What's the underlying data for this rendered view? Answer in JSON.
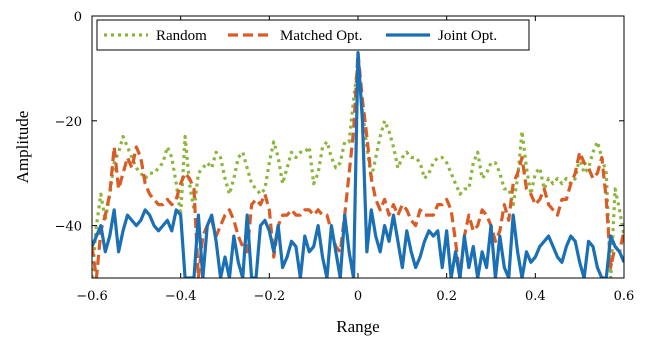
{
  "chart_data": {
    "type": "line",
    "title": "",
    "xlabel": "Range",
    "ylabel": "Amplitude",
    "xlim": [
      -0.6,
      0.6
    ],
    "ylim": [
      -50,
      0
    ],
    "x_ticks": [
      -0.6,
      -0.4,
      -0.2,
      0,
      0.2,
      0.4,
      0.6
    ],
    "x_tick_labels": [
      "−0.6",
      "−0.4",
      "−0.2",
      "0",
      "0.2",
      "0.4",
      "0.6"
    ],
    "y_ticks": [
      -40,
      -20,
      0
    ],
    "y_tick_labels": [
      "−40",
      "−20",
      "0"
    ],
    "grid": false,
    "legend": "top",
    "series": [
      {
        "name": "Random",
        "color": "#8db53c",
        "style": "dotted",
        "x": [
          -0.6,
          -0.59,
          -0.58,
          -0.57,
          -0.56,
          -0.55,
          -0.54,
          -0.53,
          -0.52,
          -0.51,
          -0.5,
          -0.49,
          -0.48,
          -0.47,
          -0.46,
          -0.45,
          -0.44,
          -0.43,
          -0.42,
          -0.41,
          -0.4,
          -0.39,
          -0.38,
          -0.37,
          -0.36,
          -0.35,
          -0.34,
          -0.33,
          -0.32,
          -0.31,
          -0.3,
          -0.29,
          -0.28,
          -0.27,
          -0.26,
          -0.25,
          -0.24,
          -0.23,
          -0.22,
          -0.21,
          -0.2,
          -0.19,
          -0.18,
          -0.17,
          -0.16,
          -0.15,
          -0.14,
          -0.13,
          -0.12,
          -0.11,
          -0.1,
          -0.09,
          -0.08,
          -0.07,
          -0.06,
          -0.05,
          -0.04,
          -0.03,
          -0.02,
          -0.01,
          0,
          0.01,
          0.02,
          0.03,
          0.04,
          0.05,
          0.06,
          0.07,
          0.08,
          0.09,
          0.1,
          0.11,
          0.12,
          0.13,
          0.14,
          0.15,
          0.16,
          0.17,
          0.18,
          0.19,
          0.2,
          0.21,
          0.22,
          0.23,
          0.24,
          0.25,
          0.26,
          0.27,
          0.28,
          0.29,
          0.3,
          0.31,
          0.32,
          0.33,
          0.34,
          0.35,
          0.36,
          0.37,
          0.38,
          0.39,
          0.4,
          0.41,
          0.42,
          0.43,
          0.44,
          0.45,
          0.46,
          0.47,
          0.48,
          0.49,
          0.5,
          0.51,
          0.52,
          0.53,
          0.54,
          0.55,
          0.56,
          0.57,
          0.58,
          0.59,
          0.6
        ],
        "y": [
          -50,
          -40,
          -34,
          -39,
          -34,
          -28,
          -26,
          -23,
          -25,
          -27,
          -29,
          -30,
          -31,
          -30,
          -30,
          -29,
          -28,
          -25,
          -27,
          -32,
          -38,
          -23,
          -32,
          -37,
          -30,
          -29,
          -28,
          -29,
          -26,
          -27,
          -31,
          -34,
          -31,
          -27,
          -26,
          -29,
          -32,
          -33,
          -34,
          -33,
          -28,
          -24,
          -27,
          -32,
          -29,
          -26,
          -27,
          -26,
          -26,
          -25,
          -32,
          -30,
          -25,
          -24,
          -27,
          -29,
          -28,
          -24,
          -24,
          -16,
          -9,
          -18,
          -25,
          -31,
          -27,
          -23,
          -20,
          -22,
          -25,
          -29,
          -27,
          -26,
          -27,
          -27,
          -28,
          -31,
          -30,
          -28,
          -27,
          -27,
          -28,
          -30,
          -32,
          -34,
          -33,
          -33,
          -28,
          -26,
          -31,
          -30,
          -28,
          -28,
          -30,
          -33,
          -33,
          -36,
          -31,
          -22,
          -29,
          -34,
          -30,
          -29,
          -33,
          -31,
          -32,
          -31,
          -32,
          -31,
          -32,
          -31,
          -27,
          -30,
          -29,
          -26,
          -24,
          -27,
          -30,
          -50,
          -33,
          -37,
          -42
        ]
      },
      {
        "name": "Matched Opt.",
        "color": "#d95b25",
        "style": "dashed",
        "x": [
          -0.6,
          -0.59,
          -0.58,
          -0.57,
          -0.56,
          -0.55,
          -0.54,
          -0.53,
          -0.52,
          -0.51,
          -0.5,
          -0.49,
          -0.48,
          -0.47,
          -0.46,
          -0.45,
          -0.44,
          -0.43,
          -0.42,
          -0.41,
          -0.4,
          -0.39,
          -0.38,
          -0.37,
          -0.36,
          -0.35,
          -0.34,
          -0.33,
          -0.32,
          -0.31,
          -0.3,
          -0.29,
          -0.28,
          -0.27,
          -0.26,
          -0.25,
          -0.24,
          -0.23,
          -0.22,
          -0.21,
          -0.2,
          -0.19,
          -0.18,
          -0.17,
          -0.16,
          -0.15,
          -0.14,
          -0.13,
          -0.12,
          -0.11,
          -0.1,
          -0.09,
          -0.08,
          -0.07,
          -0.06,
          -0.05,
          -0.04,
          -0.03,
          -0.02,
          -0.01,
          0,
          0.01,
          0.02,
          0.03,
          0.04,
          0.05,
          0.06,
          0.07,
          0.08,
          0.09,
          0.1,
          0.11,
          0.12,
          0.13,
          0.14,
          0.15,
          0.16,
          0.17,
          0.18,
          0.19,
          0.2,
          0.21,
          0.22,
          0.23,
          0.24,
          0.25,
          0.26,
          0.27,
          0.28,
          0.29,
          0.3,
          0.31,
          0.32,
          0.33,
          0.34,
          0.35,
          0.36,
          0.37,
          0.38,
          0.39,
          0.4,
          0.41,
          0.42,
          0.43,
          0.44,
          0.45,
          0.46,
          0.47,
          0.48,
          0.49,
          0.5,
          0.51,
          0.52,
          0.53,
          0.54,
          0.55,
          0.56,
          0.57,
          0.58,
          0.59,
          0.6
        ],
        "y": [
          -44,
          -50,
          -41,
          -38,
          -34,
          -25,
          -33,
          -30,
          -27,
          -29,
          -25,
          -27,
          -32,
          -34,
          -35,
          -36,
          -36,
          -35,
          -36,
          -35,
          -32,
          -30,
          -31,
          -33,
          -50,
          -42,
          -40,
          -39,
          -42,
          -40,
          -38,
          -37,
          -39,
          -42,
          -44,
          -45,
          -36,
          -35,
          -36,
          -34,
          -37,
          -46,
          -40,
          -38,
          -38,
          -37,
          -38,
          -38,
          -37,
          -37,
          -38,
          -37,
          -38,
          -38,
          -41,
          -44,
          -45,
          -38,
          -30,
          -22,
          -7,
          -16,
          -23,
          -31,
          -35,
          -37,
          -35,
          -38,
          -36,
          -38,
          -36,
          -37,
          -39,
          -40,
          -37,
          -38,
          -38,
          -38,
          -36,
          -36,
          -35,
          -37,
          -43,
          -50,
          -42,
          -38,
          -41,
          -40,
          -37,
          -38,
          -40,
          -43,
          -41,
          -36,
          -39,
          -32,
          -30,
          -27,
          -33,
          -34,
          -36,
          -35,
          -33,
          -36,
          -37,
          -38,
          -35,
          -35,
          -32,
          -30,
          -26,
          -28,
          -29,
          -31,
          -30,
          -27,
          -35,
          -48,
          -44,
          -45,
          -41
        ]
      },
      {
        "name": "Joint Opt.",
        "color": "#1a6fb5",
        "style": "solid",
        "x": [
          -0.6,
          -0.59,
          -0.58,
          -0.57,
          -0.56,
          -0.55,
          -0.54,
          -0.53,
          -0.52,
          -0.51,
          -0.5,
          -0.49,
          -0.48,
          -0.47,
          -0.46,
          -0.45,
          -0.44,
          -0.43,
          -0.42,
          -0.41,
          -0.4,
          -0.39,
          -0.38,
          -0.37,
          -0.36,
          -0.35,
          -0.34,
          -0.33,
          -0.32,
          -0.31,
          -0.3,
          -0.29,
          -0.28,
          -0.27,
          -0.26,
          -0.25,
          -0.24,
          -0.23,
          -0.22,
          -0.21,
          -0.2,
          -0.19,
          -0.18,
          -0.17,
          -0.16,
          -0.15,
          -0.14,
          -0.13,
          -0.12,
          -0.11,
          -0.1,
          -0.09,
          -0.08,
          -0.07,
          -0.06,
          -0.05,
          -0.04,
          -0.03,
          -0.02,
          -0.01,
          0,
          0.01,
          0.02,
          0.03,
          0.04,
          0.05,
          0.06,
          0.07,
          0.08,
          0.09,
          0.1,
          0.11,
          0.12,
          0.13,
          0.14,
          0.15,
          0.16,
          0.17,
          0.18,
          0.19,
          0.2,
          0.21,
          0.22,
          0.23,
          0.24,
          0.25,
          0.26,
          0.27,
          0.28,
          0.29,
          0.3,
          0.31,
          0.32,
          0.33,
          0.34,
          0.35,
          0.36,
          0.37,
          0.38,
          0.39,
          0.4,
          0.41,
          0.42,
          0.43,
          0.44,
          0.45,
          0.46,
          0.47,
          0.48,
          0.49,
          0.5,
          0.51,
          0.52,
          0.53,
          0.54,
          0.55,
          0.56,
          0.57,
          0.58,
          0.59,
          0.6
        ],
        "y": [
          -44,
          -42,
          -40,
          -45,
          -42,
          -37,
          -45,
          -41,
          -38,
          -39,
          -40,
          -39,
          -37,
          -38,
          -40,
          -41,
          -40,
          -39,
          -41,
          -37,
          -38,
          -50,
          -50,
          -50,
          -38,
          -50,
          -40,
          -38,
          -43,
          -50,
          -46,
          -50,
          -42,
          -47,
          -50,
          -38,
          -50,
          -50,
          -40,
          -39,
          -41,
          -45,
          -40,
          -48,
          -46,
          -43,
          -44,
          -50,
          -42,
          -45,
          -44,
          -40,
          -46,
          -50,
          -40,
          -45,
          -50,
          -38,
          -45,
          -50,
          -7,
          -20,
          -45,
          -37,
          -42,
          -45,
          -40,
          -43,
          -38,
          -43,
          -48,
          -41,
          -45,
          -48,
          -46,
          -43,
          -41,
          -42,
          -41,
          -48,
          -41,
          -50,
          -45,
          -50,
          -42,
          -48,
          -44,
          -50,
          -45,
          -48,
          -40,
          -50,
          -42,
          -48,
          -50,
          -38,
          -45,
          -50,
          -45,
          -47,
          -46,
          -44,
          -43,
          -42,
          -44,
          -46,
          -47,
          -44,
          -42,
          -43,
          -47,
          -50,
          -43,
          -44,
          -48,
          -50,
          -50,
          -42,
          -44,
          -45,
          -47
        ]
      }
    ]
  }
}
